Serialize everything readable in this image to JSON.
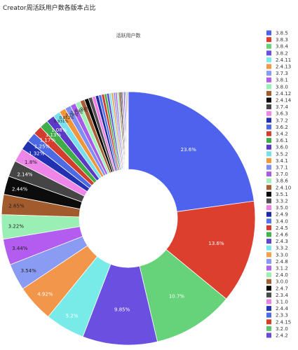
{
  "page_title": "Creator周活跃用户数各版本占比",
  "chart_data": {
    "type": "pie",
    "hole": true,
    "title": "活跃用户数",
    "legend_position": "right",
    "slices": [
      {
        "label": "3.8.5",
        "value": 23.6,
        "color": "#4f62ee",
        "text": "23.6%"
      },
      {
        "label": "3.8.3",
        "value": 13.6,
        "color": "#dd3f2f",
        "text": "13.6%"
      },
      {
        "label": "3.8.4",
        "value": 10.7,
        "color": "#66d27a",
        "text": "10.7%"
      },
      {
        "label": "3.8.2",
        "value": 9.85,
        "color": "#6a4fe0",
        "text": "9.85%"
      },
      {
        "label": "2.4.11",
        "value": 5.2,
        "color": "#78ebe9",
        "text": "5.2%"
      },
      {
        "label": "2.4.13",
        "value": 4.92,
        "color": "#f1964a",
        "text": "4.92%"
      },
      {
        "label": "3.7.3",
        "value": 3.54,
        "color": "#8a9bf4",
        "text": "3.54%"
      },
      {
        "label": "3.8.1",
        "value": 3.44,
        "color": "#b25cf0",
        "text": "3.44%"
      },
      {
        "label": "3.8.0",
        "value": 3.22,
        "color": "#9af0b4",
        "text": "3.22%"
      },
      {
        "label": "2.4.12",
        "value": 2.65,
        "color": "#a25b2d",
        "text": "2.65%"
      },
      {
        "label": "2.4.14",
        "value": 2.44,
        "color": "#0c0c0c",
        "text": "2.44%"
      },
      {
        "label": "3.7.4",
        "value": 2.14,
        "color": "#454545",
        "text": "2.14%"
      },
      {
        "label": "3.6.3",
        "value": 1.8,
        "color": "#ee86ea",
        "text": "1.8%"
      },
      {
        "label": "3.7.2",
        "value": 1.32,
        "color": "#2231b2",
        "text": "1.32%"
      },
      {
        "label": "3.6.2",
        "value": 1.25,
        "color": "#4c6ae4",
        "text": "1.25%"
      },
      {
        "label": "3.4.2",
        "value": 1.17,
        "color": "#d23d2d",
        "text": "1.17%"
      },
      {
        "label": "3.6.1",
        "value": 1.13,
        "color": "#3fae4a",
        "text": "1.13%"
      },
      {
        "label": "3.6.0",
        "value": 1.08,
        "color": "#5a39c6",
        "text": "1.08%"
      },
      {
        "label": "3.5.2",
        "value": 0.931,
        "color": "#77e0ee",
        "text": "0.931%"
      },
      {
        "label": "3.4.1",
        "value": 0.852,
        "color": "#f1963b",
        "text": "0.852%"
      },
      {
        "label": "3.7.1",
        "value": 0.78,
        "color": "#7f8ff5",
        "text": "0.78%"
      },
      {
        "label": "3.7.0",
        "value": 0.72,
        "color": "#a85ae8",
        "text": "0.72%"
      },
      {
        "label": "3.8.6",
        "value": 0.66,
        "color": "#a0f0b9",
        "text": "0.66%"
      },
      {
        "label": "2.4.10",
        "value": 0.6,
        "color": "#a65f34",
        "text": "0.6%"
      },
      {
        "label": "3.5.1",
        "value": 0.55,
        "color": "#080808",
        "text": ""
      },
      {
        "label": "3.3.2",
        "value": 0.5,
        "color": "#505050",
        "text": ""
      },
      {
        "label": "3.5.0",
        "value": 0.45,
        "color": "#f07fe8",
        "text": ""
      },
      {
        "label": "2.4.9",
        "value": 0.42,
        "color": "#1d2aa8",
        "text": ""
      },
      {
        "label": "3.4.0",
        "value": 0.39,
        "color": "#5076e8",
        "text": ""
      },
      {
        "label": "2.4.5",
        "value": 0.36,
        "color": "#d43a2c",
        "text": ""
      },
      {
        "label": "2.4.6",
        "value": 0.33,
        "color": "#43b24c",
        "text": ""
      },
      {
        "label": "2.4.3",
        "value": 0.31,
        "color": "#6144d0",
        "text": ""
      },
      {
        "label": "3.3.2",
        "value": 0.29,
        "color": "#7ae6ee",
        "text": ""
      },
      {
        "label": "3.3.0",
        "value": 0.27,
        "color": "#f3a04a",
        "text": ""
      },
      {
        "label": "2.4.8",
        "value": 0.25,
        "color": "#8898f4",
        "text": ""
      },
      {
        "label": "3.1.2",
        "value": 0.23,
        "color": "#ad63ec",
        "text": ""
      },
      {
        "label": "2.4.0",
        "value": 0.21,
        "color": "#9eeeb4",
        "text": ""
      },
      {
        "label": "3.0.0",
        "value": 0.19,
        "color": "#a06030",
        "text": ""
      },
      {
        "label": "2.4.7",
        "value": 0.17,
        "color": "#000000",
        "text": ""
      },
      {
        "label": "2.3.4",
        "value": 0.16,
        "color": "#4a4a4a",
        "text": ""
      },
      {
        "label": "3.1.0",
        "value": 0.15,
        "color": "#ea7fe4",
        "text": ""
      },
      {
        "label": "2.4.4",
        "value": 0.14,
        "color": "#2433b0",
        "text": ""
      },
      {
        "label": "2.3.3",
        "value": 0.13,
        "color": "#4f6ae8",
        "text": ""
      },
      {
        "label": "2.4.15",
        "value": 0.12,
        "color": "#d63c2c",
        "text": ""
      },
      {
        "label": "3.2.0",
        "value": 0.11,
        "color": "#5cc46a",
        "text": ""
      },
      {
        "label": "2.4.2",
        "value": 0.1,
        "color": "#6a4ad8",
        "text": ""
      }
    ]
  }
}
